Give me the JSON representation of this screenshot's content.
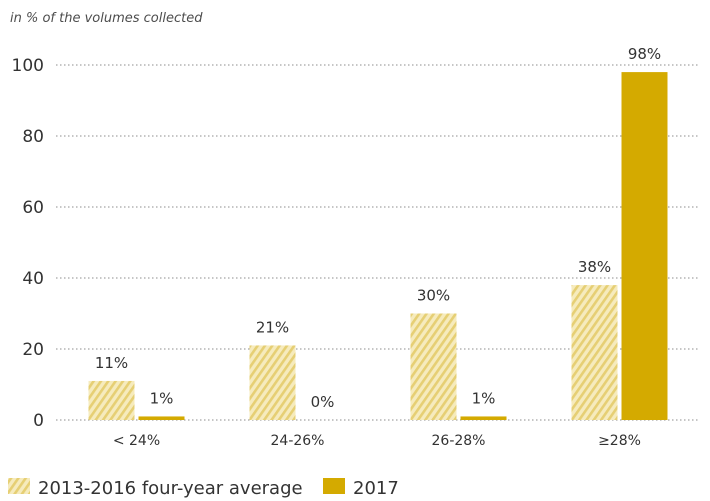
{
  "chart_data": {
    "type": "bar",
    "unit_note": "in % of the volumes collected",
    "categories": [
      "< 24%",
      "24-26%",
      "26-28%",
      "≥28%"
    ],
    "series": [
      {
        "name": "2013-2016 four-year average",
        "values": [
          11,
          21,
          30,
          38
        ],
        "labels": [
          "11%",
          "21%",
          "30%",
          "38%"
        ],
        "color": "#f1dd8f",
        "pattern": "hatched"
      },
      {
        "name": "2017",
        "values": [
          1,
          0,
          1,
          98
        ],
        "labels": [
          "1%",
          "0%",
          "1%",
          "98%"
        ],
        "color": "#d4aa00",
        "pattern": "solid"
      }
    ],
    "yticks": [
      "0",
      "20",
      "40",
      "60",
      "80",
      "100"
    ],
    "ylim": [
      0,
      100
    ],
    "grid": true,
    "legend_position": "bottom-left"
  }
}
